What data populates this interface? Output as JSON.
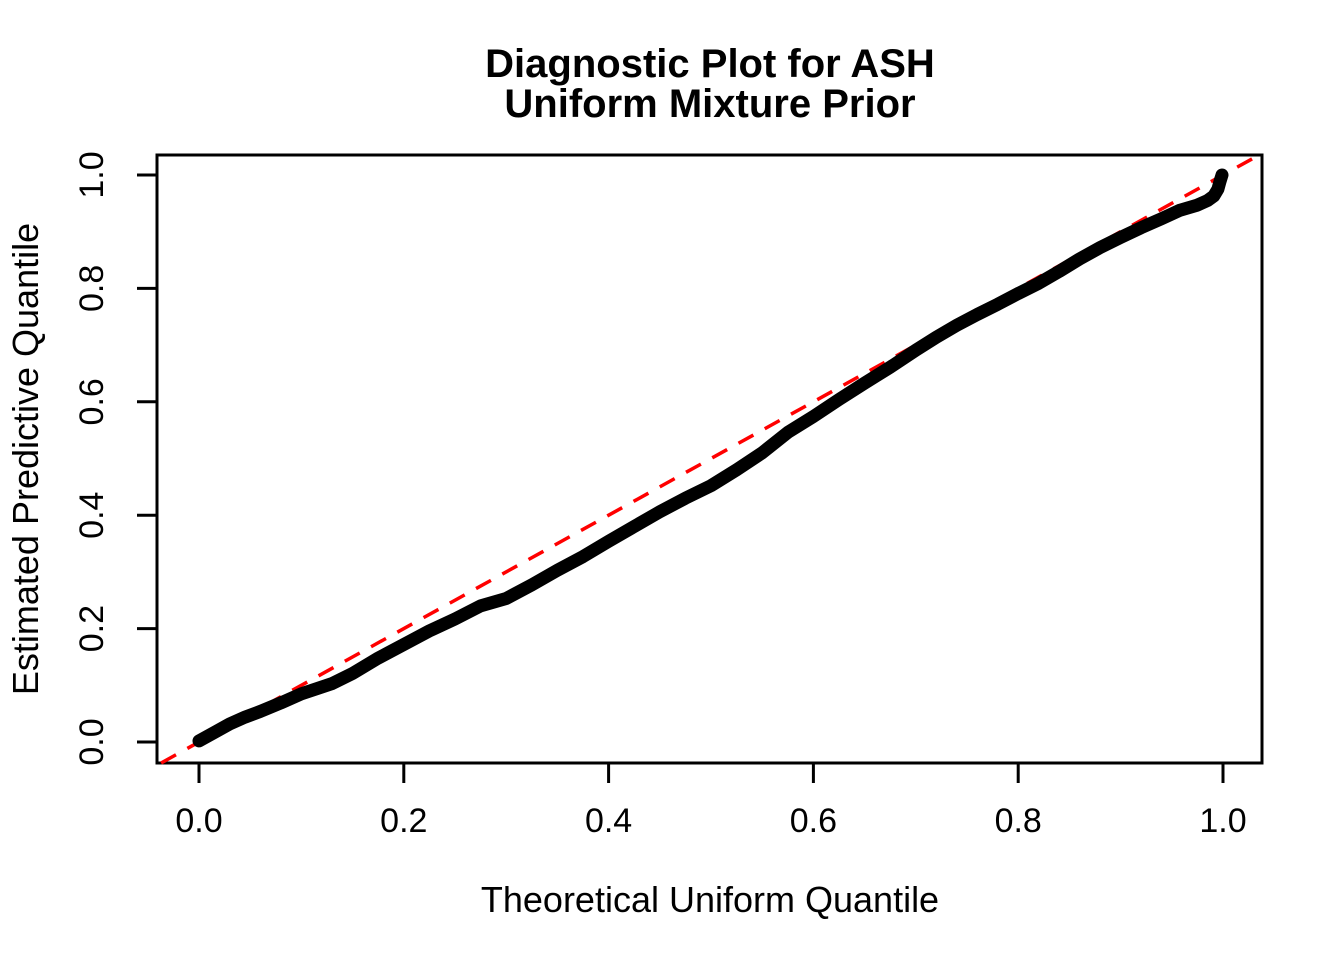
{
  "title": {
    "line1": "Diagnostic Plot for ASH",
    "line2": "Uniform Mixture Prior"
  },
  "chart_data": {
    "type": "line",
    "title": "Diagnostic Plot for ASH\nUniform Mixture Prior",
    "xlabel": "Theoretical Uniform Quantile",
    "ylabel": "Estimated Predictive Quantile",
    "xlim": [
      -0.041,
      1.038
    ],
    "ylim": [
      -0.037,
      1.035
    ],
    "grid": false,
    "legend": null,
    "x_ticks": [
      0.0,
      0.2,
      0.4,
      0.6,
      0.8,
      1.0
    ],
    "y_ticks": [
      0.0,
      0.2,
      0.4,
      0.6,
      0.8,
      1.0
    ],
    "x_tick_labels": [
      "0.0",
      "0.2",
      "0.4",
      "0.6",
      "0.8",
      "1.0"
    ],
    "y_tick_labels": [
      "0.0",
      "0.2",
      "0.4",
      "0.6",
      "0.8",
      "1.0"
    ],
    "series": [
      {
        "name": "estimated-predictive-quantile-curve",
        "color": "#000000",
        "style": "solid",
        "line_width": 13,
        "points": [
          [
            0.0,
            0.002
          ],
          [
            0.015,
            0.017
          ],
          [
            0.03,
            0.032
          ],
          [
            0.045,
            0.044
          ],
          [
            0.06,
            0.054
          ],
          [
            0.08,
            0.069
          ],
          [
            0.1,
            0.085
          ],
          [
            0.115,
            0.094
          ],
          [
            0.13,
            0.103
          ],
          [
            0.15,
            0.121
          ],
          [
            0.175,
            0.148
          ],
          [
            0.2,
            0.172
          ],
          [
            0.225,
            0.196
          ],
          [
            0.25,
            0.217
          ],
          [
            0.275,
            0.24
          ],
          [
            0.3,
            0.253
          ],
          [
            0.325,
            0.277
          ],
          [
            0.35,
            0.303
          ],
          [
            0.375,
            0.327
          ],
          [
            0.4,
            0.354
          ],
          [
            0.425,
            0.38
          ],
          [
            0.45,
            0.406
          ],
          [
            0.475,
            0.43
          ],
          [
            0.5,
            0.452
          ],
          [
            0.525,
            0.48
          ],
          [
            0.55,
            0.51
          ],
          [
            0.575,
            0.546
          ],
          [
            0.6,
            0.574
          ],
          [
            0.625,
            0.604
          ],
          [
            0.65,
            0.633
          ],
          [
            0.675,
            0.661
          ],
          [
            0.7,
            0.691
          ],
          [
            0.72,
            0.714
          ],
          [
            0.74,
            0.735
          ],
          [
            0.76,
            0.754
          ],
          [
            0.78,
            0.772
          ],
          [
            0.8,
            0.791
          ],
          [
            0.82,
            0.809
          ],
          [
            0.84,
            0.83
          ],
          [
            0.86,
            0.852
          ],
          [
            0.88,
            0.872
          ],
          [
            0.9,
            0.89
          ],
          [
            0.92,
            0.907
          ],
          [
            0.94,
            0.923
          ],
          [
            0.958,
            0.938
          ],
          [
            0.975,
            0.947
          ],
          [
            0.985,
            0.955
          ],
          [
            0.991,
            0.963
          ],
          [
            0.995,
            0.975
          ],
          [
            0.997,
            0.988
          ],
          [
            0.999,
            1.0
          ]
        ]
      },
      {
        "name": "identity-reference-line",
        "color": "#FF0000",
        "style": "dashed",
        "line_width": 3.5,
        "points": [
          [
            -0.037,
            -0.037
          ],
          [
            1.035,
            1.035
          ]
        ]
      }
    ]
  },
  "colors": {
    "background": "#FFFFFF",
    "axis": "#000000",
    "curve": "#000000",
    "reference_line": "#FF0000"
  }
}
